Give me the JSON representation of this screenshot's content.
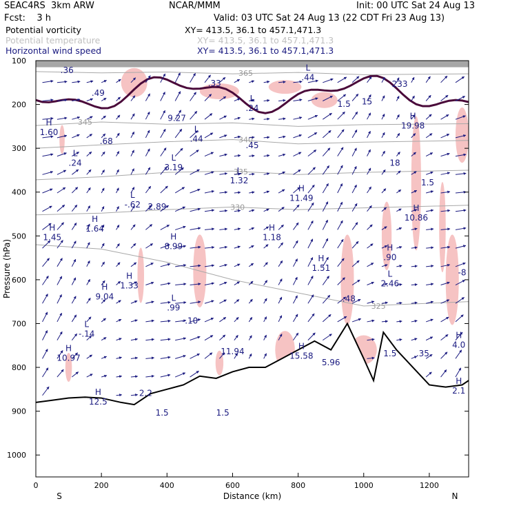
{
  "header": {
    "model": "SEAC4RS  3km ARW",
    "org": "NCAR/MMM",
    "init": "Init: 00 UTC Sat 24 Aug 13",
    "fcst": "Fcst:    3 h",
    "valid": "Valid: 03 UTC Sat 24 Aug 13 (22 CDT Fri 23 Aug 13)"
  },
  "fields": [
    {
      "name": "Potential vorticity",
      "xy": "XY= 413.5, 36.1 to 457.1,471.3",
      "color": "#000000"
    },
    {
      "name": "Potential temperature",
      "xy": "XY= 413.5, 36.1 to 457.1,471.3",
      "color": "#c0c0c0"
    },
    {
      "name": "Horizontal wind speed",
      "xy": "XY= 413.5, 36.1 to 457.1,471.3",
      "color": "#1a1a80"
    }
  ],
  "chart_data": {
    "type": "cross-section",
    "xlabel": "Distance (km)",
    "ylabel": "Pressure (hPa)",
    "xlim": [
      0,
      1320
    ],
    "ylim": [
      1050,
      100
    ],
    "xticks": [
      0,
      200,
      400,
      600,
      800,
      1000,
      1200
    ],
    "yticks": [
      100,
      200,
      300,
      400,
      500,
      600,
      700,
      800,
      900,
      1000
    ],
    "end_labels": {
      "left": "S",
      "right": "N"
    },
    "colors": {
      "pv_contour": "#4a0a3a",
      "theta": "#a8a8a8",
      "wind": "#1a1a80",
      "shading_pink": "#f5b8b8",
      "shading_gray": "#909090"
    },
    "theta_contours": [
      {
        "label": "365",
        "x": 640,
        "p": 128,
        "pts": [
          [
            0,
            125
          ],
          [
            200,
            128
          ],
          [
            400,
            126
          ],
          [
            600,
            130
          ],
          [
            800,
            127
          ],
          [
            1000,
            132
          ],
          [
            1320,
            130
          ]
        ]
      },
      {
        "label": "345",
        "x": 150,
        "p": 240,
        "pts": [
          [
            0,
            248
          ],
          [
            200,
            240
          ],
          [
            400,
            245
          ],
          [
            600,
            242
          ],
          [
            800,
            250
          ],
          [
            1000,
            246
          ],
          [
            1320,
            244
          ]
        ]
      },
      {
        "label": "340",
        "x": 640,
        "p": 280,
        "pts": [
          [
            0,
            300
          ],
          [
            200,
            292
          ],
          [
            400,
            285
          ],
          [
            600,
            280
          ],
          [
            800,
            290
          ],
          [
            1000,
            286
          ],
          [
            1320,
            282
          ]
        ]
      },
      {
        "label": "335",
        "x": 625,
        "p": 353,
        "pts": [
          [
            0,
            372
          ],
          [
            200,
            365
          ],
          [
            400,
            355
          ],
          [
            600,
            352
          ],
          [
            800,
            360
          ],
          [
            1000,
            355
          ],
          [
            1320,
            350
          ]
        ]
      },
      {
        "label": "330",
        "x": 615,
        "p": 434,
        "pts": [
          [
            0,
            452
          ],
          [
            200,
            448
          ],
          [
            400,
            440
          ],
          [
            600,
            434
          ],
          [
            800,
            440
          ],
          [
            1000,
            436
          ],
          [
            1320,
            430
          ]
        ]
      },
      {
        "label": "325",
        "x": 1045,
        "p": 660,
        "pts": [
          [
            0,
            520
          ],
          [
            200,
            530
          ],
          [
            400,
            560
          ],
          [
            600,
            600
          ],
          [
            800,
            630
          ],
          [
            1000,
            660
          ],
          [
            1320,
            650
          ]
        ]
      }
    ],
    "terrain": [
      [
        0,
        880
      ],
      [
        50,
        875
      ],
      [
        100,
        870
      ],
      [
        150,
        868
      ],
      [
        200,
        870
      ],
      [
        260,
        880
      ],
      [
        300,
        885
      ],
      [
        350,
        860
      ],
      [
        400,
        850
      ],
      [
        450,
        840
      ],
      [
        500,
        820
      ],
      [
        550,
        825
      ],
      [
        600,
        810
      ],
      [
        650,
        800
      ],
      [
        700,
        800
      ],
      [
        750,
        780
      ],
      [
        800,
        760
      ],
      [
        850,
        740
      ],
      [
        900,
        760
      ],
      [
        950,
        700
      ],
      [
        1000,
        780
      ],
      [
        1030,
        830
      ],
      [
        1060,
        720
      ],
      [
        1100,
        760
      ],
      [
        1150,
        800
      ],
      [
        1200,
        840
      ],
      [
        1250,
        845
      ],
      [
        1300,
        840
      ],
      [
        1320,
        830
      ]
    ],
    "labels": [
      {
        "t": "H",
        "v": "1.60",
        "x": 40,
        "p": 270
      },
      {
        "t": "L",
        "v": ".24",
        "x": 120,
        "p": 340
      },
      {
        "t": "",
        "v": ".49",
        "x": 190,
        "p": 180
      },
      {
        "t": "",
        "v": ".68",
        "x": 215,
        "p": 290
      },
      {
        "t": "",
        "v": "9.27",
        "x": 430,
        "p": 238
      },
      {
        "t": "L",
        "v": ".44",
        "x": 490,
        "p": 285
      },
      {
        "t": "",
        "v": ".45",
        "x": 660,
        "p": 300
      },
      {
        "t": "L",
        "v": ".24",
        "x": 660,
        "p": 215
      },
      {
        "t": "",
        "v": ".33",
        "x": 545,
        "p": 158
      },
      {
        "t": "L",
        "v": "3.19",
        "x": 420,
        "p": 350
      },
      {
        "t": "L",
        "v": "1.32",
        "x": 620,
        "p": 380
      },
      {
        "t": "H",
        "v": "11.49",
        "x": 810,
        "p": 420
      },
      {
        "t": "L",
        "v": "-.62",
        "x": 295,
        "p": 435
      },
      {
        "t": "",
        "v": "2.89",
        "x": 370,
        "p": 440
      },
      {
        "t": "H",
        "v": "1.45",
        "x": 50,
        "p": 510
      },
      {
        "t": "H",
        "v": "1.64",
        "x": 180,
        "p": 490
      },
      {
        "t": "H",
        "v": "8.99",
        "x": 420,
        "p": 530
      },
      {
        "t": "H",
        "v": "1.18",
        "x": 720,
        "p": 510
      },
      {
        "t": "H",
        "v": "1.51",
        "x": 870,
        "p": 580
      },
      {
        "t": "H",
        "v": "9.04",
        "x": 210,
        "p": 645
      },
      {
        "t": "H",
        "v": "1.33",
        "x": 285,
        "p": 620
      },
      {
        "t": "L",
        "v": ".99",
        "x": 420,
        "p": 670
      },
      {
        "t": "",
        "v": "-.10",
        "x": 470,
        "p": 700
      },
      {
        "t": "L",
        "v": "-.14",
        "x": 155,
        "p": 730
      },
      {
        "t": "H",
        "v": "10.97",
        "x": 100,
        "p": 785
      },
      {
        "t": "",
        "v": "11.94",
        "x": 600,
        "p": 770
      },
      {
        "t": "H",
        "v": "15.58",
        "x": 810,
        "p": 780
      },
      {
        "t": "",
        "v": "5.96",
        "x": 900,
        "p": 795
      },
      {
        "t": "",
        "v": ".48",
        "x": 955,
        "p": 650
      },
      {
        "t": "H",
        "v": ".90",
        "x": 1080,
        "p": 555
      },
      {
        "t": "L",
        "v": "2.46",
        "x": 1080,
        "p": 615
      },
      {
        "t": "H",
        "v": "10.86",
        "x": 1160,
        "p": 465
      },
      {
        "t": "",
        "v": "1.5",
        "x": 1195,
        "p": 385
      },
      {
        "t": "",
        "v": "18",
        "x": 1095,
        "p": 340
      },
      {
        "t": "H",
        "v": "19.98",
        "x": 1150,
        "p": 255
      },
      {
        "t": "",
        "v": "1.5",
        "x": 940,
        "p": 205
      },
      {
        "t": "",
        "v": "15",
        "x": 1010,
        "p": 200
      },
      {
        "t": "",
        "v": "233",
        "x": 1110,
        "p": 160
      },
      {
        "t": "L",
        "v": ".44",
        "x": 830,
        "p": 145
      },
      {
        "t": "",
        "v": "1.5",
        "x": 1080,
        "p": 775
      },
      {
        "t": "",
        "v": ".35",
        "x": 1180,
        "p": 775
      },
      {
        "t": "H",
        "v": "4.0",
        "x": 1290,
        "p": 755
      },
      {
        "t": "",
        "v": "-8",
        "x": 1300,
        "p": 590
      },
      {
        "t": "H",
        "v": "2.1",
        "x": 1290,
        "p": 860
      },
      {
        "t": "H",
        "v": "12.5",
        "x": 190,
        "p": 885
      },
      {
        "t": "",
        "v": "2.2",
        "x": 335,
        "p": 865
      },
      {
        "t": "",
        "v": "1.5",
        "x": 385,
        "p": 910
      },
      {
        "t": "",
        "v": "1.5",
        "x": 570,
        "p": 910
      },
      {
        "t": "",
        "v": ".36",
        "x": 95,
        "p": 128
      }
    ]
  }
}
